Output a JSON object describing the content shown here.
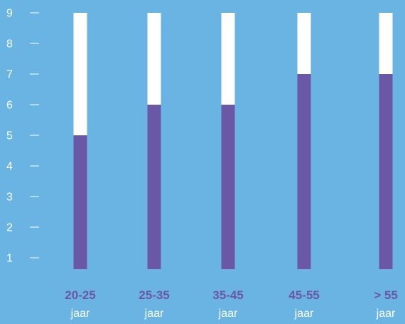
{
  "colors": {
    "background": "#6ab4e4",
    "bar_fill": "#6a57a5",
    "bar_track": "#ffffff",
    "axis_text": "#ffffff",
    "category_text": "#6a57a5"
  },
  "chart_data": {
    "type": "bar",
    "categories": [
      "20-25",
      "25-35",
      "35-45",
      "45-55",
      "> 55"
    ],
    "category_unit": "jaar",
    "values": [
      5,
      6,
      6,
      7,
      7
    ],
    "max": 9,
    "yticks": [
      1,
      2,
      3,
      4,
      5,
      6,
      7,
      8,
      9
    ],
    "ylim": [
      0,
      9
    ],
    "grid": false,
    "title": "",
    "xlabel": "",
    "ylabel": ""
  }
}
